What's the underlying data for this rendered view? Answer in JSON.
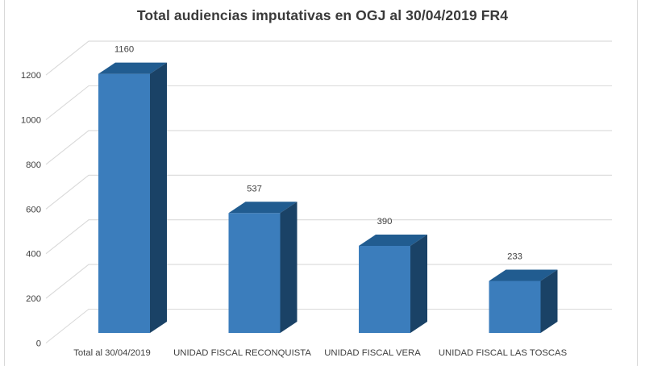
{
  "chart_data": {
    "type": "bar",
    "subtype": "3d-column",
    "title": "Total audiencias imputativas en OGJ al 30/04/2019 FR4",
    "categories": [
      "Total al 30/04/2019",
      "UNIDAD FISCAL RECONQUISTA",
      "UNIDAD FISCAL VERA",
      "UNIDAD FISCAL LAS TOSCAS"
    ],
    "values": [
      1160,
      537,
      390,
      233
    ],
    "data_labels": [
      "1160",
      "537",
      "390",
      "233"
    ],
    "xlabel": "",
    "ylabel": "",
    "ylim": [
      0,
      1200
    ],
    "ytick_interval": 200,
    "yticks": [
      0,
      200,
      400,
      600,
      800,
      1000,
      1200
    ],
    "grid": true,
    "legend": "none",
    "colors": {
      "bar_front": "#3B7DBC",
      "bar_top": "#215C90",
      "bar_side": "#1A4266",
      "gridline": "#D9D9D9",
      "text": "#404040",
      "title_text": "#3A3A3A",
      "frame_border": "#D8D8D8",
      "background": "#FFFFFF"
    }
  }
}
